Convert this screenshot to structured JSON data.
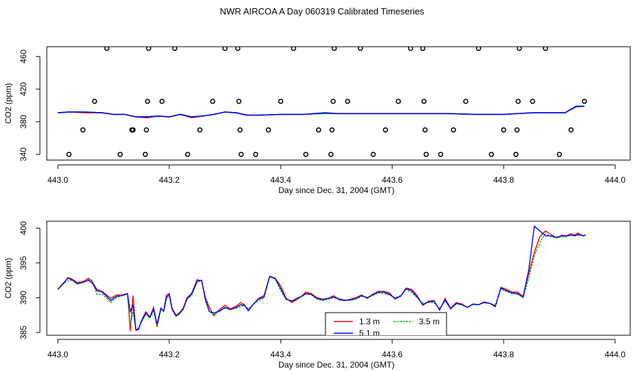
{
  "figure": {
    "title": "NWR AIRCOA A  Day 060319  Calibrated Timeseries"
  },
  "chart_data": [
    {
      "type": "line+scatter",
      "panel": "top",
      "xlabel": "Day since Dec. 31, 2004 (GMT)",
      "ylabel": "CO2 (ppm)",
      "xlim": [
        443.0,
        444.0
      ],
      "ylim": [
        333,
        472
      ],
      "xticks": [
        "443.0",
        "443.2",
        "443.4",
        "443.6",
        "443.8",
        "444.0"
      ],
      "yticks": [
        "340",
        "380",
        "420",
        "460"
      ],
      "grid": false,
      "line_series": [
        {
          "name": "1.3 m",
          "color": "#ff0000",
          "x": [
            443.0,
            443.02,
            443.05,
            443.08,
            443.1,
            443.12,
            443.14,
            443.16,
            443.18,
            443.2,
            443.22,
            443.24,
            443.26,
            443.28,
            443.3,
            443.32,
            443.34,
            443.36,
            443.4,
            443.44,
            443.48,
            443.5,
            443.55,
            443.6,
            443.65,
            443.7,
            443.75,
            443.8,
            443.85,
            443.88,
            443.91,
            443.93,
            443.945
          ],
          "y": [
            391,
            392,
            391,
            391,
            389,
            389,
            386,
            385,
            387,
            386,
            389,
            385,
            387,
            389,
            392,
            391,
            388,
            388,
            389,
            389,
            391,
            390,
            390,
            390,
            390,
            390,
            389,
            389,
            391,
            391,
            391,
            399,
            399
          ]
        },
        {
          "name": "3.5 m",
          "color": "#00bb00",
          "x": [
            443.0,
            443.02,
            443.05,
            443.08,
            443.1,
            443.12,
            443.14,
            443.16,
            443.18,
            443.2,
            443.22,
            443.24,
            443.26,
            443.28,
            443.3,
            443.32,
            443.34,
            443.36,
            443.4,
            443.44,
            443.48,
            443.5,
            443.55,
            443.6,
            443.65,
            443.7,
            443.75,
            443.8,
            443.85,
            443.88,
            443.91,
            443.93,
            443.945
          ],
          "y": [
            391,
            392,
            392,
            391,
            389,
            389,
            386,
            386,
            387,
            386,
            389,
            386,
            387,
            389,
            392,
            391,
            388,
            388,
            389,
            389,
            390,
            390,
            390,
            390,
            390,
            390,
            389,
            389,
            391,
            391,
            391,
            398,
            399
          ]
        },
        {
          "name": "5.1 m",
          "color": "#0000ff",
          "x": [
            443.0,
            443.02,
            443.05,
            443.08,
            443.1,
            443.12,
            443.14,
            443.16,
            443.18,
            443.2,
            443.22,
            443.24,
            443.26,
            443.28,
            443.3,
            443.32,
            443.34,
            443.36,
            443.4,
            443.44,
            443.48,
            443.5,
            443.55,
            443.6,
            443.65,
            443.7,
            443.75,
            443.8,
            443.85,
            443.88,
            443.91,
            443.93,
            443.945
          ],
          "y": [
            391,
            392,
            392,
            391,
            389,
            389,
            386,
            386,
            387,
            386,
            389,
            386,
            387,
            389,
            392,
            391,
            388,
            388,
            389,
            389,
            391,
            390,
            390,
            390,
            390,
            390,
            389,
            389,
            391,
            391,
            391,
            399,
            399
          ]
        }
      ],
      "calibration_points": [
        {
          "x": 443.02,
          "y": 340
        },
        {
          "x": 443.045,
          "y": 370
        },
        {
          "x": 443.066,
          "y": 405
        },
        {
          "x": 443.088,
          "y": 470
        },
        {
          "x": 443.112,
          "y": 340
        },
        {
          "x": 443.133,
          "y": 370
        },
        {
          "x": 443.135,
          "y": 370
        },
        {
          "x": 443.157,
          "y": 340
        },
        {
          "x": 443.159,
          "y": 370
        },
        {
          "x": 443.161,
          "y": 405
        },
        {
          "x": 443.163,
          "y": 470
        },
        {
          "x": 443.187,
          "y": 405
        },
        {
          "x": 443.21,
          "y": 470
        },
        {
          "x": 443.233,
          "y": 340
        },
        {
          "x": 443.255,
          "y": 370
        },
        {
          "x": 443.278,
          "y": 405
        },
        {
          "x": 443.3,
          "y": 470
        },
        {
          "x": 443.323,
          "y": 470
        },
        {
          "x": 443.325,
          "y": 405
        },
        {
          "x": 443.327,
          "y": 370
        },
        {
          "x": 443.329,
          "y": 340
        },
        {
          "x": 443.355,
          "y": 340
        },
        {
          "x": 443.378,
          "y": 370
        },
        {
          "x": 443.4,
          "y": 405
        },
        {
          "x": 443.423,
          "y": 470
        },
        {
          "x": 443.445,
          "y": 340
        },
        {
          "x": 443.468,
          "y": 370
        },
        {
          "x": 443.49,
          "y": 340
        },
        {
          "x": 443.492,
          "y": 370
        },
        {
          "x": 443.494,
          "y": 405
        },
        {
          "x": 443.496,
          "y": 470
        },
        {
          "x": 443.52,
          "y": 405
        },
        {
          "x": 443.543,
          "y": 470
        },
        {
          "x": 443.566,
          "y": 340
        },
        {
          "x": 443.588,
          "y": 370
        },
        {
          "x": 443.611,
          "y": 405
        },
        {
          "x": 443.633,
          "y": 470
        },
        {
          "x": 443.655,
          "y": 470
        },
        {
          "x": 443.657,
          "y": 405
        },
        {
          "x": 443.659,
          "y": 370
        },
        {
          "x": 443.661,
          "y": 340
        },
        {
          "x": 443.687,
          "y": 340
        },
        {
          "x": 443.71,
          "y": 370
        },
        {
          "x": 443.732,
          "y": 405
        },
        {
          "x": 443.755,
          "y": 470
        },
        {
          "x": 443.778,
          "y": 340
        },
        {
          "x": 443.8,
          "y": 370
        },
        {
          "x": 443.822,
          "y": 340
        },
        {
          "x": 443.824,
          "y": 370
        },
        {
          "x": 443.826,
          "y": 405
        },
        {
          "x": 443.828,
          "y": 470
        },
        {
          "x": 443.852,
          "y": 405
        },
        {
          "x": 443.875,
          "y": 470
        },
        {
          "x": 443.9,
          "y": 340
        },
        {
          "x": 443.921,
          "y": 370
        },
        {
          "x": 443.945,
          "y": 405
        }
      ]
    },
    {
      "type": "line",
      "panel": "bottom",
      "xlabel": "Day since Dec. 31, 2004 (GMT)",
      "ylabel": "CO2 (ppm)",
      "xlim": [
        443.0,
        444.0
      ],
      "ylim": [
        384.6,
        401.0
      ],
      "xticks": [
        "443.0",
        "443.2",
        "443.4",
        "443.6",
        "443.8",
        "444.0"
      ],
      "yticks": [
        "385",
        "390",
        "395",
        "400"
      ],
      "grid": false,
      "legend": {
        "position": "bottom-center",
        "entries": [
          "1.3 m",
          "3.5 m",
          "5.1 m"
        ]
      },
      "x": [
        443.0,
        443.01,
        443.018,
        443.025,
        443.035,
        443.045,
        443.055,
        443.062,
        443.07,
        443.08,
        443.095,
        443.105,
        443.115,
        443.125,
        443.13,
        443.135,
        443.14,
        443.145,
        443.15,
        443.158,
        443.165,
        443.172,
        443.178,
        443.185,
        443.19,
        443.195,
        443.2,
        443.205,
        443.212,
        443.218,
        443.225,
        443.232,
        443.24,
        443.25,
        443.258,
        443.265,
        443.272,
        443.28,
        443.29,
        443.3,
        443.31,
        443.32,
        443.328,
        443.335,
        443.342,
        443.35,
        443.36,
        443.37,
        443.38,
        443.39,
        443.4,
        443.41,
        443.42,
        443.43,
        443.44,
        443.445,
        443.455,
        443.465,
        443.475,
        443.485,
        443.495,
        443.505,
        443.515,
        443.525,
        443.535,
        443.545,
        443.555,
        443.565,
        443.575,
        443.585,
        443.595,
        443.605,
        443.615,
        443.625,
        443.635,
        443.645,
        443.655,
        443.665,
        443.675,
        443.685,
        443.695,
        443.705,
        443.715,
        443.725,
        443.735,
        443.745,
        443.755,
        443.765,
        443.775,
        443.785,
        443.795,
        443.805,
        443.815,
        443.825,
        443.835,
        443.845,
        443.855,
        443.865,
        443.875,
        443.885,
        443.895,
        443.905,
        443.913,
        443.92,
        443.928,
        443.933,
        443.938,
        443.943,
        443.947
      ],
      "series": [
        {
          "name": "1.3 m",
          "color": "#ff0000",
          "values": [
            391.2,
            392.0,
            392.9,
            392.7,
            392.2,
            392.3,
            392.8,
            392.3,
            391.2,
            390.9,
            389.9,
            390.4,
            390.4,
            390.6,
            385.2,
            390.3,
            385.3,
            385.4,
            386.7,
            388.0,
            387.2,
            388.6,
            385.8,
            388.4,
            388.1,
            390.4,
            390.6,
            388.5,
            387.5,
            387.8,
            388.5,
            390.0,
            390.6,
            392.6,
            392.4,
            390.0,
            388.6,
            387.4,
            388.3,
            388.9,
            388.4,
            388.8,
            389.3,
            389.0,
            388.1,
            389.0,
            389.9,
            390.3,
            393.0,
            392.8,
            391.7,
            389.9,
            389.3,
            389.8,
            390.4,
            390.8,
            390.6,
            390.0,
            389.8,
            389.9,
            390.3,
            389.7,
            389.6,
            389.8,
            390.0,
            390.4,
            389.9,
            390.5,
            390.9,
            390.9,
            390.7,
            389.8,
            390.2,
            391.4,
            391.2,
            390.3,
            388.9,
            389.5,
            389.6,
            388.2,
            389.9,
            388.5,
            389.3,
            389.1,
            388.6,
            389.1,
            389.0,
            389.4,
            389.2,
            388.7,
            391.5,
            391.2,
            390.8,
            390.8,
            390.2,
            393.5,
            396.5,
            398.8,
            399.6,
            399.1,
            398.6,
            399.0,
            398.9,
            399.2,
            399.0,
            399.3,
            399.1,
            398.9,
            399.0
          ]
        },
        {
          "name": "3.5 m",
          "color": "#00bb00",
          "values": [
            391.2,
            392.0,
            392.4,
            392.5,
            392.1,
            392.2,
            392.6,
            392.5,
            390.5,
            390.5,
            389.3,
            390.0,
            390.3,
            390.5,
            386.0,
            388.0,
            385.5,
            385.6,
            386.5,
            387.5,
            387.1,
            388.0,
            386.0,
            388.3,
            388.0,
            389.8,
            390.3,
            388.3,
            387.3,
            387.6,
            388.3,
            389.8,
            390.3,
            392.2,
            392.5,
            389.5,
            388.0,
            387.6,
            388.0,
            388.5,
            388.3,
            388.5,
            388.7,
            388.9,
            388.4,
            389.0,
            389.6,
            390.0,
            393.0,
            392.7,
            391.0,
            389.7,
            389.6,
            390.0,
            390.3,
            390.5,
            390.4,
            389.8,
            389.6,
            389.8,
            390.0,
            389.9,
            389.7,
            389.6,
            389.8,
            390.2,
            390.0,
            390.3,
            390.7,
            390.6,
            390.4,
            390.0,
            390.3,
            391.2,
            390.7,
            390.0,
            389.2,
            389.3,
            389.3,
            388.4,
            389.6,
            388.4,
            389.1,
            389.0,
            388.6,
            389.0,
            389.0,
            389.3,
            389.2,
            388.9,
            391.3,
            390.9,
            390.6,
            390.5,
            390.0,
            392.8,
            396.0,
            398.0,
            399.2,
            398.8,
            398.6,
            398.7,
            398.8,
            399.0,
            398.9,
            399.0,
            399.0,
            398.9,
            399.1
          ]
        },
        {
          "name": "5.1 m",
          "color": "#0000ff",
          "values": [
            391.2,
            392.1,
            392.8,
            392.6,
            392.0,
            392.2,
            392.5,
            392.1,
            391.0,
            390.8,
            389.6,
            390.2,
            390.3,
            390.6,
            388.0,
            389.0,
            385.4,
            385.5,
            386.6,
            387.8,
            387.2,
            388.4,
            386.2,
            388.5,
            388.1,
            390.1,
            390.5,
            388.4,
            387.4,
            387.7,
            388.4,
            389.9,
            390.5,
            392.4,
            392.5,
            389.8,
            388.0,
            387.8,
            388.1,
            388.6,
            388.3,
            388.6,
            389.0,
            388.9,
            388.2,
            389.0,
            389.8,
            390.1,
            393.1,
            392.8,
            391.3,
            389.8,
            389.5,
            389.9,
            390.3,
            390.6,
            390.5,
            389.9,
            389.7,
            389.9,
            390.1,
            389.8,
            389.6,
            389.7,
            389.9,
            390.3,
            390.0,
            390.4,
            390.8,
            390.8,
            390.5,
            389.9,
            390.2,
            391.3,
            391.0,
            390.1,
            389.0,
            389.4,
            389.5,
            388.3,
            389.7,
            388.4,
            389.2,
            389.0,
            388.6,
            389.1,
            389.0,
            389.3,
            389.2,
            388.8,
            391.4,
            391.0,
            390.7,
            390.6,
            390.1,
            394.0,
            400.3,
            399.6,
            398.9,
            398.9,
            398.7,
            398.9,
            398.9,
            399.0,
            398.9,
            399.1,
            399.0,
            398.9,
            399.0
          ]
        }
      ]
    }
  ]
}
